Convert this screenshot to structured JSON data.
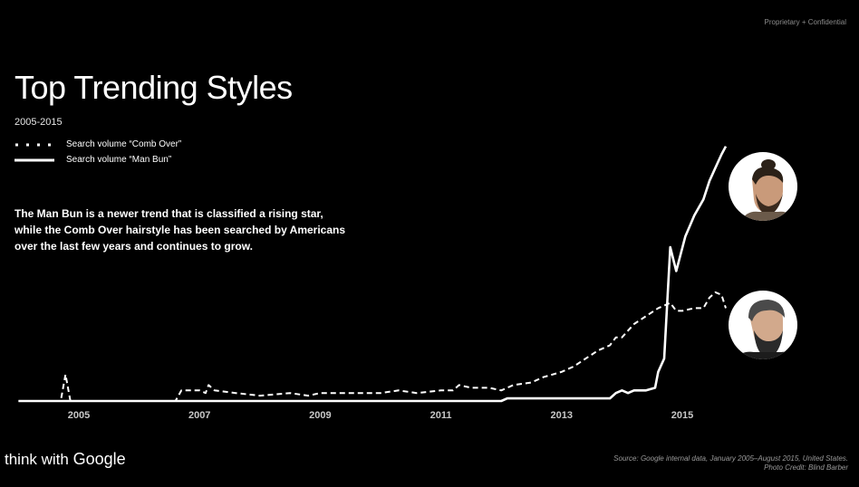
{
  "header": {
    "confidential": "Proprietary + Confidential"
  },
  "title": "Top Trending Styles",
  "subtitle": "2005-2015",
  "legend": [
    {
      "label": "Search volume “Comb Over”",
      "style": "dotted"
    },
    {
      "label": "Search volume “Man Bun”",
      "style": "solid"
    }
  ],
  "description": "The Man Bun is a newer trend that is classified a rising star, while the Comb Over hairstyle has been searched by Americans over the last few years and continues to grow.",
  "footer": {
    "brand_prefix": "think with ",
    "brand_name": "Google",
    "source_line1": "Source: Google internal data, January 2005–August 2015, United States.",
    "source_line2": "Photo Credit: Blind Barber"
  },
  "avatars": [
    {
      "name": "man-bun-avatar-icon"
    },
    {
      "name": "comb-over-avatar-icon"
    }
  ],
  "chart_data": {
    "type": "line",
    "xlim": [
      2004.0,
      2015.8
    ],
    "ylim": [
      0,
      100
    ],
    "x_ticks": [
      "2005",
      "2007",
      "2009",
      "2011",
      "2013",
      "2015"
    ],
    "x_tick_values": [
      2005,
      2007,
      2009,
      2011,
      2013,
      2015
    ],
    "grid": false,
    "colors": {
      "line": "#ffffff",
      "axis_text": "#c8c8c8"
    },
    "series": [
      {
        "name": "Search volume “Comb Over”",
        "style": "dotted",
        "points": [
          [
            2004.0,
            0
          ],
          [
            2004.7,
            0
          ],
          [
            2004.78,
            10
          ],
          [
            2004.86,
            0
          ],
          [
            2006.6,
            0
          ],
          [
            2006.7,
            4
          ],
          [
            2007.0,
            4
          ],
          [
            2007.1,
            3
          ],
          [
            2007.15,
            6
          ],
          [
            2007.25,
            4
          ],
          [
            2007.6,
            3
          ],
          [
            2008.0,
            2
          ],
          [
            2008.5,
            3
          ],
          [
            2008.8,
            2
          ],
          [
            2009.0,
            3
          ],
          [
            2009.5,
            3
          ],
          [
            2010.0,
            3
          ],
          [
            2010.3,
            4
          ],
          [
            2010.6,
            3
          ],
          [
            2011.0,
            4
          ],
          [
            2011.2,
            4
          ],
          [
            2011.3,
            6
          ],
          [
            2011.5,
            5
          ],
          [
            2011.8,
            5
          ],
          [
            2012.0,
            4
          ],
          [
            2012.2,
            6
          ],
          [
            2012.5,
            7
          ],
          [
            2012.7,
            9
          ],
          [
            2013.0,
            11
          ],
          [
            2013.2,
            13
          ],
          [
            2013.4,
            16
          ],
          [
            2013.6,
            19
          ],
          [
            2013.8,
            21
          ],
          [
            2013.9,
            24
          ],
          [
            2014.0,
            24
          ],
          [
            2014.2,
            29
          ],
          [
            2014.4,
            32
          ],
          [
            2014.6,
            35
          ],
          [
            2014.8,
            37
          ],
          [
            2014.9,
            34
          ],
          [
            2015.0,
            34
          ],
          [
            2015.2,
            35
          ],
          [
            2015.35,
            35
          ],
          [
            2015.45,
            39
          ],
          [
            2015.55,
            41
          ],
          [
            2015.65,
            40
          ],
          [
            2015.72,
            35
          ]
        ]
      },
      {
        "name": "Search volume “Man Bun”",
        "style": "solid",
        "points": [
          [
            2004.0,
            0
          ],
          [
            2012.0,
            0
          ],
          [
            2012.1,
            1
          ],
          [
            2013.0,
            1
          ],
          [
            2013.8,
            1
          ],
          [
            2013.9,
            3
          ],
          [
            2014.0,
            4
          ],
          [
            2014.1,
            3
          ],
          [
            2014.2,
            4
          ],
          [
            2014.4,
            4
          ],
          [
            2014.55,
            5
          ],
          [
            2014.6,
            11
          ],
          [
            2014.7,
            16
          ],
          [
            2014.8,
            58
          ],
          [
            2014.9,
            49
          ],
          [
            2015.05,
            62
          ],
          [
            2015.2,
            70
          ],
          [
            2015.35,
            76
          ],
          [
            2015.45,
            83
          ],
          [
            2015.55,
            88
          ],
          [
            2015.65,
            93
          ],
          [
            2015.72,
            96
          ]
        ]
      }
    ]
  }
}
